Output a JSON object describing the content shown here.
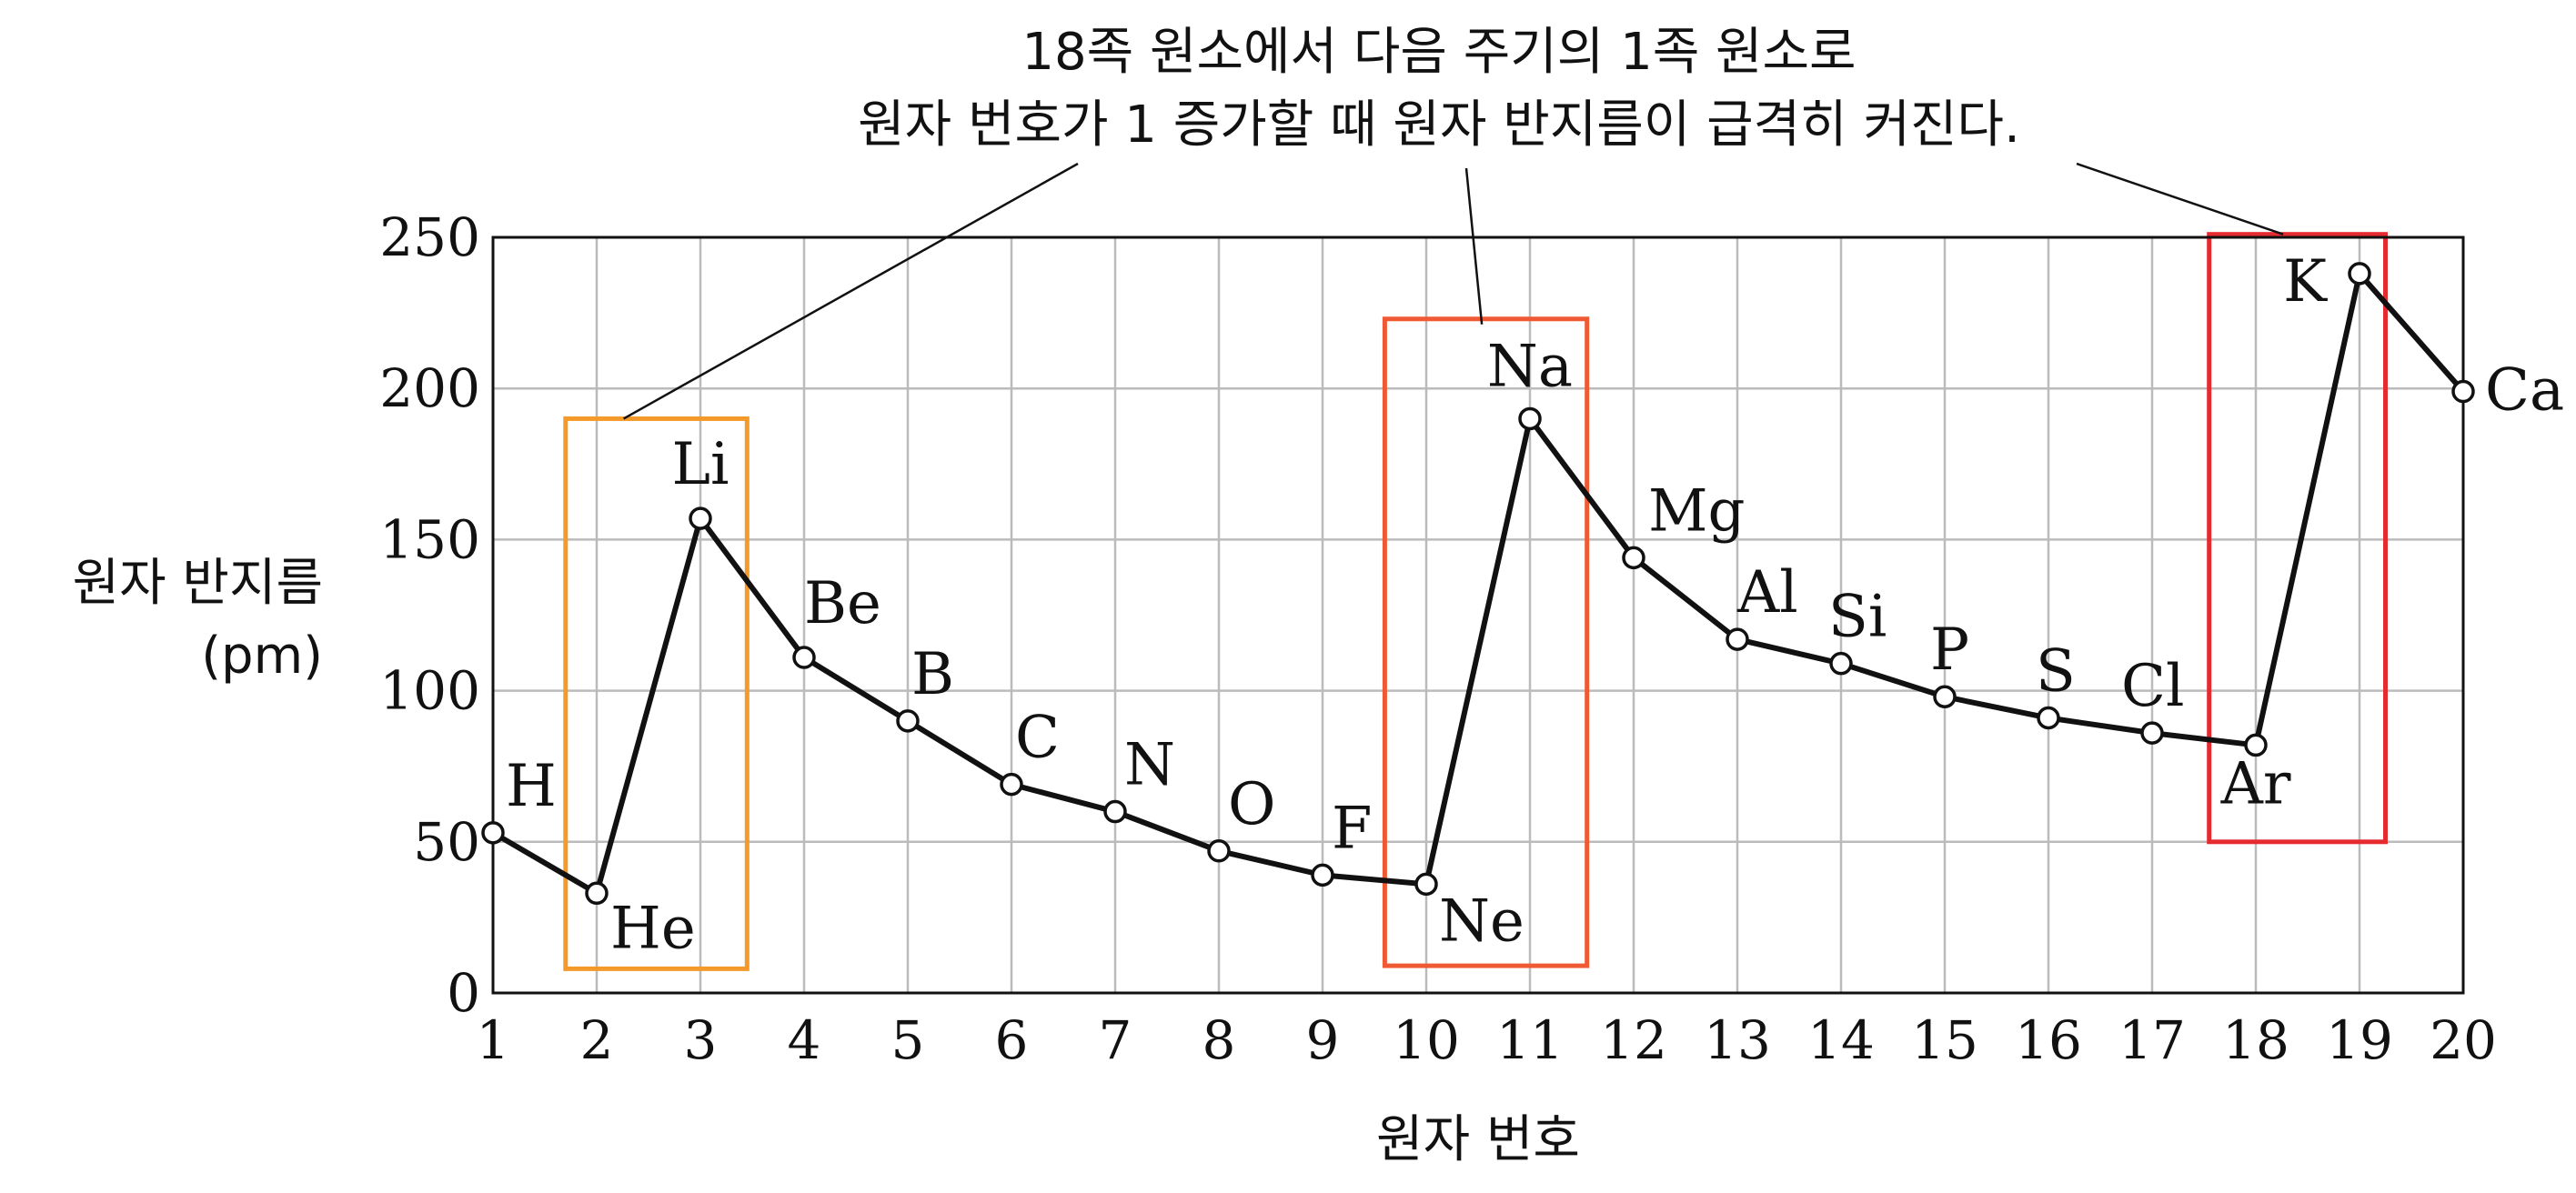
{
  "chart_data": {
    "type": "line",
    "annotation": [
      "18족 원소에서 다음 주기의 1족 원소로",
      "원자 번호가 1 증가할 때 원자 반지름이 급격히 커진다."
    ],
    "ylabel": [
      "원자 반지름",
      "(pm)"
    ],
    "xlabel": "원자 번호",
    "xlim": [
      1,
      20
    ],
    "ylim": [
      0,
      250
    ],
    "x_ticks": [
      1,
      2,
      3,
      4,
      5,
      6,
      7,
      8,
      9,
      10,
      11,
      12,
      13,
      14,
      15,
      16,
      17,
      18,
      19,
      20
    ],
    "y_ticks": [
      0,
      50,
      100,
      150,
      200,
      250
    ],
    "grid": true,
    "series": [
      {
        "points": [
          {
            "x": 1,
            "y": 53,
            "label": "H"
          },
          {
            "x": 2,
            "y": 33,
            "label": "He"
          },
          {
            "x": 3,
            "y": 157,
            "label": "Li"
          },
          {
            "x": 4,
            "y": 111,
            "label": "Be"
          },
          {
            "x": 5,
            "y": 90,
            "label": "B"
          },
          {
            "x": 6,
            "y": 69,
            "label": "C"
          },
          {
            "x": 7,
            "y": 60,
            "label": "N"
          },
          {
            "x": 8,
            "y": 47,
            "label": "O"
          },
          {
            "x": 9,
            "y": 39,
            "label": "F"
          },
          {
            "x": 10,
            "y": 36,
            "label": "Ne"
          },
          {
            "x": 11,
            "y": 190,
            "label": "Na"
          },
          {
            "x": 12,
            "y": 144,
            "label": "Mg"
          },
          {
            "x": 13,
            "y": 117,
            "label": "Al"
          },
          {
            "x": 14,
            "y": 109,
            "label": "Si"
          },
          {
            "x": 15,
            "y": 98,
            "label": "P"
          },
          {
            "x": 16,
            "y": 91,
            "label": "S"
          },
          {
            "x": 17,
            "y": 86,
            "label": "Cl"
          },
          {
            "x": 18,
            "y": 82,
            "label": "Ar"
          },
          {
            "x": 19,
            "y": 238,
            "label": "K"
          },
          {
            "x": 20,
            "y": 199,
            "label": "Ca"
          }
        ]
      }
    ],
    "highlight_boxes": [
      {
        "color": "#f39a2b",
        "x_range": [
          1.7,
          3.45
        ],
        "y_range": [
          8,
          190
        ]
      },
      {
        "color": "#ef5a35",
        "x_range": [
          9.6,
          11.55
        ],
        "y_range": [
          9,
          223
        ]
      },
      {
        "color": "#e52a30",
        "x_range": [
          17.55,
          19.25
        ],
        "y_range": [
          50,
          251
        ]
      }
    ]
  }
}
